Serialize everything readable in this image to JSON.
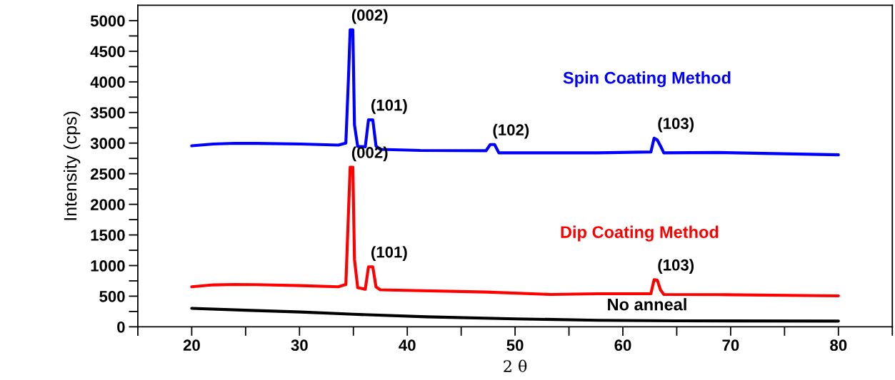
{
  "chart_data": {
    "type": "line",
    "xlabel": "2 θ",
    "ylabel": "Intensity (cps)",
    "xlim": [
      15,
      85
    ],
    "ylim": [
      0,
      5250
    ],
    "xticks": [
      {
        "value": 15,
        "label": null
      },
      20,
      {
        "value": 25,
        "label": null
      },
      30,
      {
        "value": 35,
        "label": null
      },
      40,
      {
        "value": 45,
        "label": null
      },
      50,
      {
        "value": 55,
        "label": null
      },
      60,
      {
        "value": 65,
        "label": null
      },
      70,
      {
        "value": 75,
        "label": null
      },
      80,
      {
        "value": 85,
        "label": null
      }
    ],
    "yticks": [
      0,
      {
        "value": 250,
        "label": null
      },
      500,
      {
        "value": 750,
        "label": null
      },
      1000,
      {
        "value": 1250,
        "label": null
      },
      1500,
      {
        "value": 1750,
        "label": null
      },
      2000,
      {
        "value": 2250,
        "label": null
      },
      2500,
      {
        "value": 2750,
        "label": null
      },
      3000,
      {
        "value": 3250,
        "label": null
      },
      3500,
      {
        "value": 3750,
        "label": null
      },
      4000,
      {
        "value": 4250,
        "label": null
      },
      4500,
      {
        "value": 4750,
        "label": null
      },
      5000
    ],
    "grid": false,
    "legend": false,
    "marker": "none",
    "line_style": "solid",
    "series": [
      {
        "name": "Spin Coating Method",
        "color": "#0000ff",
        "x": [
          20,
          22,
          24,
          26,
          30.1,
          33.6,
          34.3,
          34.55,
          34.7,
          34.95,
          35.1,
          35.4,
          36.1,
          36.4,
          36.8,
          37.1,
          37.5,
          41.2,
          47.3,
          47.7,
          48.1,
          48.5,
          57.7,
          62.6,
          62.9,
          63.2,
          63.5,
          63.8,
          68.9,
          80
        ],
        "values": [
          2956,
          2985,
          2997,
          2995,
          2985,
          2968,
          3000,
          4100,
          4850,
          4850,
          3300,
          2945,
          2939,
          3380,
          3380,
          2950,
          2898,
          2880,
          2875,
          2976,
          2976,
          2840,
          2840,
          2855,
          3081,
          3050,
          2950,
          2840,
          2847,
          2808
        ]
      },
      {
        "name": "Dip Coating Method",
        "color": "#ff0000",
        "x": [
          20,
          22,
          24,
          26,
          30.1,
          33.6,
          34.3,
          34.55,
          34.7,
          34.95,
          35.1,
          35.4,
          36.1,
          36.4,
          36.8,
          37.1,
          37.5,
          47.3,
          53.3,
          57.7,
          62.6,
          62.9,
          63.2,
          63.5,
          63.8,
          68.9,
          80
        ],
        "values": [
          654,
          685,
          691,
          688,
          672,
          654,
          690,
          1900,
          2606,
          2606,
          1100,
          640,
          613,
          980,
          980,
          650,
          604,
          567,
          528,
          540,
          540,
          769,
          760,
          600,
          528,
          525,
          505
        ]
      },
      {
        "name": "No anneal",
        "color": "#000000",
        "x": [
          20,
          25,
          30.1,
          35,
          41.8,
          50,
          57.7,
          65,
          80
        ],
        "values": [
          301,
          270,
          242,
          205,
          164,
          130,
          106,
          98,
          94
        ]
      }
    ],
    "annotations": [
      {
        "text": "(002)",
        "x": 34.8,
        "y": 4850
      },
      {
        "text": "(101)",
        "x": 36.6,
        "y": 3380
      },
      {
        "text": "(102)",
        "x": 47.9,
        "y": 2976
      },
      {
        "text": "(103)",
        "x": 63.2,
        "y": 3081
      },
      {
        "text": "(002)",
        "x": 34.8,
        "y": 2606
      },
      {
        "text": "(101)",
        "x": 36.6,
        "y": 980
      },
      {
        "text": "(103)",
        "x": 63.2,
        "y": 769
      }
    ]
  }
}
